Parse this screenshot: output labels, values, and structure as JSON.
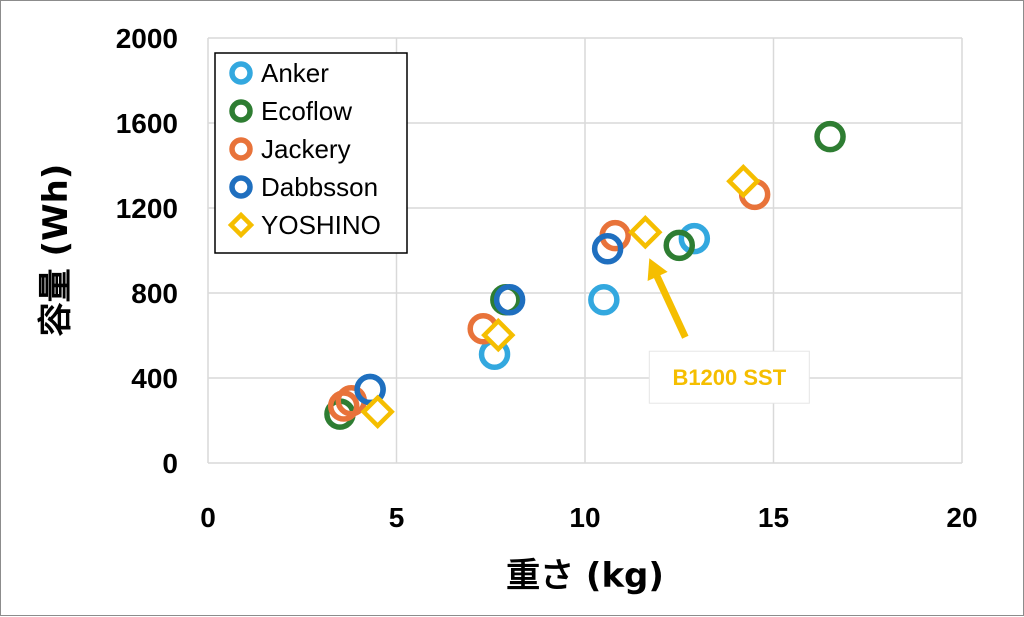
{
  "chart_data": {
    "type": "scatter",
    "xlabel": "重さ (kg)",
    "ylabel": "容量 (Wh)",
    "xlim": [
      0,
      20
    ],
    "ylim": [
      0,
      2000
    ],
    "xticks": [
      "0",
      "5",
      "10",
      "15",
      "20"
    ],
    "yticks": [
      "0",
      "400",
      "800",
      "1200",
      "1600",
      "2000"
    ],
    "grid": "vertical-and-horizontal",
    "legend_position": "top-left",
    "series": [
      {
        "name": "Anker",
        "marker": "circle",
        "color": "#33A8DF",
        "points": [
          [
            4.3,
            346
          ],
          [
            7.6,
            512
          ],
          [
            10.5,
            768
          ],
          [
            12.9,
            1056
          ]
        ]
      },
      {
        "name": "Ecoflow",
        "marker": "circle",
        "color": "#2E7D32",
        "points": [
          [
            3.5,
            230
          ],
          [
            7.9,
            768
          ],
          [
            12.5,
            1024
          ],
          [
            16.5,
            1536
          ]
        ]
      },
      {
        "name": "Jackery",
        "marker": "circle",
        "color": "#E8733A",
        "points": [
          [
            3.6,
            268
          ],
          [
            3.8,
            293
          ],
          [
            7.3,
            632
          ],
          [
            10.8,
            1070
          ],
          [
            14.5,
            1264
          ]
        ]
      },
      {
        "name": "Dabbsson",
        "marker": "circle",
        "color": "#1F6FBF",
        "points": [
          [
            4.3,
            346
          ],
          [
            8.0,
            768
          ],
          [
            10.6,
            1008
          ]
        ]
      },
      {
        "name": "YOSHINO",
        "marker": "diamond",
        "color": "#F5BE00",
        "points": [
          [
            4.5,
            241
          ],
          [
            7.7,
            602
          ],
          [
            11.6,
            1086
          ],
          [
            14.2,
            1326
          ]
        ]
      }
    ],
    "annotations": [
      {
        "text": "B1200 SST",
        "color": "#F5BE00",
        "target": [
          11.6,
          1086
        ]
      }
    ]
  }
}
